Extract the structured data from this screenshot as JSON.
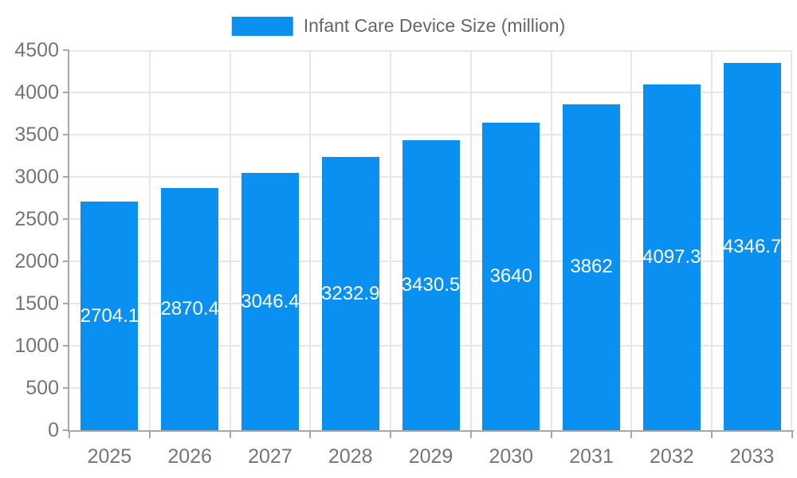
{
  "chart_data": {
    "type": "bar",
    "title": "Infant Care Device Size (million)",
    "legend": [
      "Infant Care Device Size (million)"
    ],
    "legend_position": "top-center",
    "categories": [
      "2025",
      "2026",
      "2027",
      "2028",
      "2029",
      "2030",
      "2031",
      "2032",
      "2033"
    ],
    "values": [
      2704.1,
      2870.4,
      3046.4,
      3232.9,
      3430.5,
      3640,
      3862,
      4097.3,
      4346.7
    ],
    "xlabel": "",
    "ylabel": "",
    "ylim": [
      0,
      4500
    ],
    "yticks": [
      0,
      500,
      1000,
      1500,
      2000,
      2500,
      3000,
      3500,
      4000,
      4500
    ],
    "grid": true,
    "value_label_position": "inside-center",
    "colors": {
      "bar": "#0A90F0",
      "grid": "#e6e6eb",
      "axis": "#a8a8ab",
      "axis_text": "#757575",
      "legend_text": "#666666",
      "value_label": "#ffffff",
      "background": "#ffffff"
    }
  }
}
